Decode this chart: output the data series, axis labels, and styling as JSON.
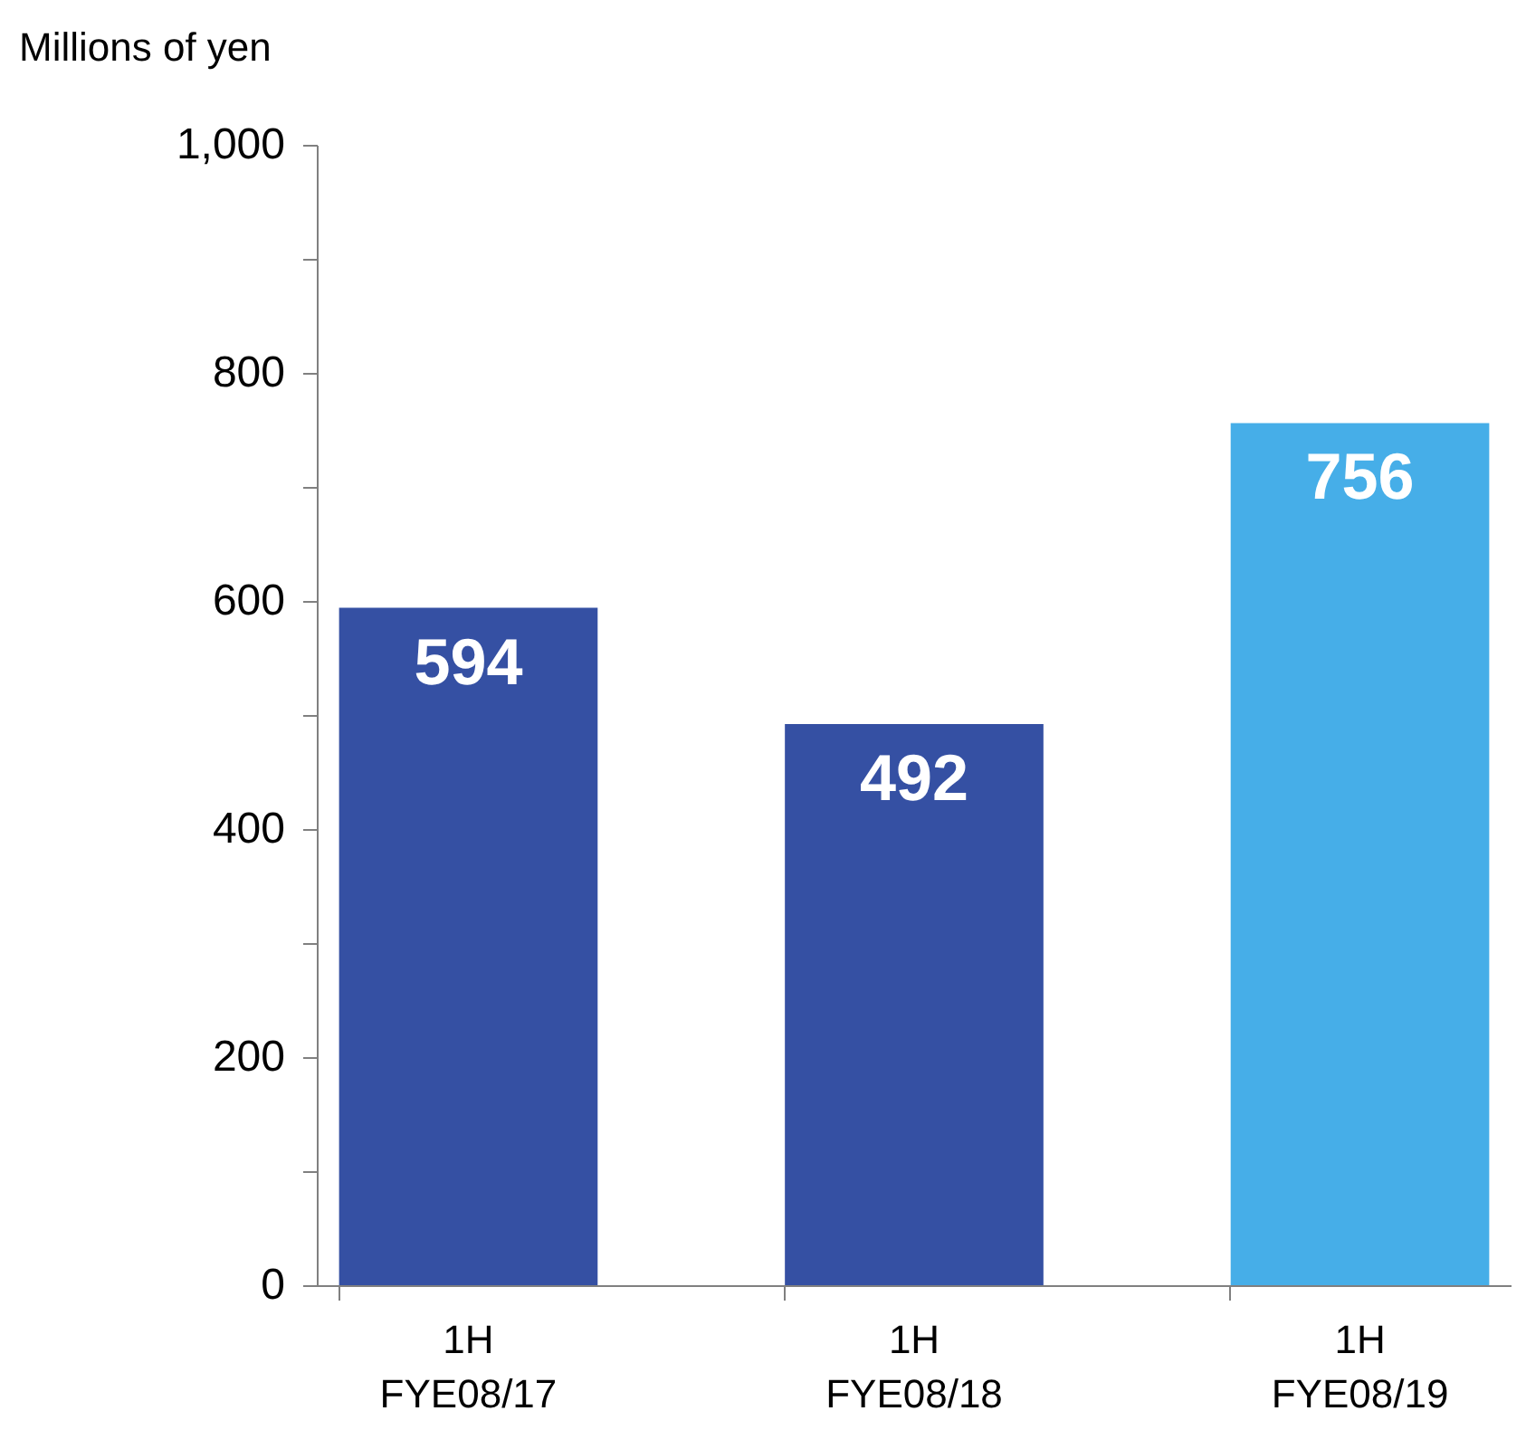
{
  "chart_data": {
    "type": "bar",
    "ylabel": "Millions of yen",
    "categories": [
      "1H\nFYE08/17",
      "1H\nFYE08/18",
      "1H\nFYE08/19"
    ],
    "values": [
      594,
      492,
      756
    ],
    "colors": [
      "#3550a3",
      "#3550a3",
      "#46aee8"
    ],
    "ylim": [
      0,
      1000
    ],
    "yticks": [
      0,
      {
        "value": 100,
        "label": null
      },
      200,
      {
        "value": 300,
        "label": null
      },
      400,
      {
        "value": 500,
        "label": null
      },
      600,
      {
        "value": 700,
        "label": null
      },
      800,
      {
        "value": 900,
        "label": null
      },
      {
        "value": 1000,
        "label": "1,000"
      }
    ],
    "data_labels": true,
    "grid": false
  }
}
